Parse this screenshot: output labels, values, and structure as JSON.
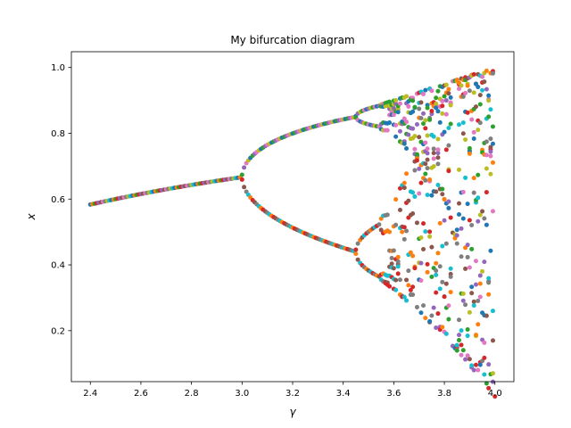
{
  "chart_data": {
    "type": "scatter",
    "title": "My bifurcation diagram",
    "xlabel": "γ",
    "ylabel": "x",
    "xlim": [
      2.325,
      4.075
    ],
    "ylim": [
      0.045,
      1.048
    ],
    "xticks": [
      2.4,
      2.6,
      2.8,
      3.0,
      3.2,
      3.4,
      3.6,
      3.8,
      4.0
    ],
    "xtick_labels": [
      "2.4",
      "2.6",
      "2.8",
      "3.0",
      "3.2",
      "3.4",
      "3.6",
      "3.8",
      "4.0"
    ],
    "yticks": [
      0.2,
      0.4,
      0.6,
      0.8,
      1.0
    ],
    "ytick_labels": [
      "0.2",
      "0.4",
      "0.6",
      "0.8",
      "1.0"
    ],
    "grid": false,
    "legend": "none",
    "colors": [
      "#1f77b4",
      "#ff7f0e",
      "#2ca02c",
      "#d62728",
      "#9467bd",
      "#8c564b",
      "#e377c2",
      "#7f7f7f",
      "#bcbd22",
      "#17becf"
    ],
    "gamma": [
      2.4,
      2.408,
      2.417,
      2.425,
      2.433,
      2.442,
      2.45,
      2.458,
      2.467,
      2.475,
      2.483,
      2.492,
      2.5,
      2.508,
      2.517,
      2.525,
      2.533,
      2.542,
      2.55,
      2.558,
      2.567,
      2.575,
      2.583,
      2.592,
      2.6,
      2.608,
      2.617,
      2.625,
      2.633,
      2.642,
      2.65,
      2.658,
      2.667,
      2.675,
      2.683,
      2.692,
      2.7,
      2.708,
      2.717,
      2.725,
      2.733,
      2.742,
      2.75,
      2.758,
      2.767,
      2.775,
      2.783,
      2.792,
      2.8,
      2.808,
      2.817,
      2.825,
      2.833,
      2.842,
      2.85,
      2.858,
      2.867,
      2.875,
      2.883,
      2.892,
      2.9,
      2.908,
      2.917,
      2.925,
      2.933,
      2.942,
      2.95,
      2.958,
      2.967,
      2.975,
      2.983,
      2.992,
      3.0,
      3.008,
      3.017,
      3.025,
      3.033,
      3.042,
      3.05,
      3.058,
      3.067,
      3.075,
      3.083,
      3.092,
      3.1,
      3.108,
      3.117,
      3.125,
      3.133,
      3.142,
      3.15,
      3.158,
      3.167,
      3.175,
      3.183,
      3.192,
      3.2,
      3.208,
      3.217,
      3.225,
      3.233,
      3.242,
      3.25,
      3.258,
      3.267,
      3.275,
      3.283,
      3.292,
      3.3,
      3.308,
      3.317,
      3.325,
      3.333,
      3.342,
      3.35,
      3.358,
      3.367,
      3.375,
      3.383,
      3.392,
      3.4,
      3.408,
      3.417,
      3.425,
      3.433,
      3.442,
      3.45,
      3.458,
      3.467,
      3.475,
      3.483,
      3.492,
      3.5,
      3.508,
      3.517,
      3.525,
      3.533,
      3.542,
      3.55,
      3.558,
      3.567,
      3.575,
      3.583,
      3.592,
      3.6,
      3.608,
      3.617,
      3.625,
      3.633,
      3.642,
      3.65,
      3.658,
      3.667,
      3.675,
      3.683,
      3.692,
      3.7,
      3.708,
      3.717,
      3.725,
      3.733,
      3.742,
      3.75,
      3.758,
      3.767,
      3.775,
      3.783,
      3.792,
      3.8,
      3.808,
      3.817,
      3.825,
      3.833,
      3.842,
      3.85,
      3.858,
      3.867,
      3.875,
      3.883,
      3.892,
      3.9,
      3.908,
      3.917,
      3.925,
      3.933,
      3.942,
      3.95,
      3.958,
      3.967,
      3.975,
      3.983,
      3.992,
      4.0
    ]
  }
}
